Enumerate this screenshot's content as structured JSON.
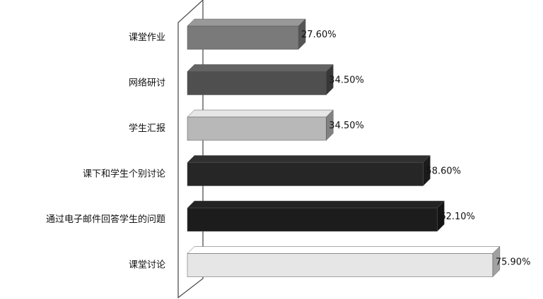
{
  "chart_data": {
    "type": "bar",
    "orientation": "horizontal",
    "categories": [
      "课堂作业",
      "网络研讨",
      "学生汇报",
      "课下和学生个别讨论",
      "通过电子邮件回答学生的问题",
      "课堂讨论"
    ],
    "values": [
      27.6,
      34.5,
      34.5,
      58.6,
      62.1,
      75.9
    ],
    "value_labels": [
      "27.60%",
      "34.50%",
      "34.50%",
      "58.60%",
      "62.10%",
      "75.90%"
    ],
    "colors": [
      "#7a7a7a",
      "#4f4f4f",
      "#b8b8b8",
      "#262626",
      "#1c1c1c",
      "#e6e6e6"
    ]
  }
}
